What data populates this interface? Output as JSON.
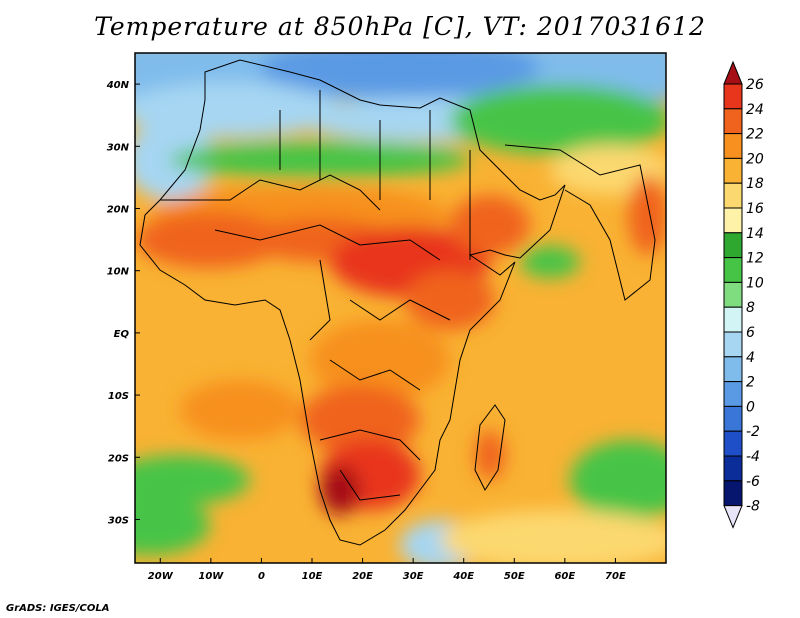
{
  "title": "Temperature at 850hPa [C], VT: 2017031612",
  "credit": "GrADS: IGES/COLA",
  "map": {
    "lon_range": [
      -25,
      80
    ],
    "lat_range": [
      -37,
      45
    ],
    "x_ticks": [
      {
        "lon": -20,
        "label": "20W"
      },
      {
        "lon": -10,
        "label": "10W"
      },
      {
        "lon": 0,
        "label": "0"
      },
      {
        "lon": 10,
        "label": "10E"
      },
      {
        "lon": 20,
        "label": "20E"
      },
      {
        "lon": 30,
        "label": "30E"
      },
      {
        "lon": 40,
        "label": "40E"
      },
      {
        "lon": 50,
        "label": "50E"
      },
      {
        "lon": 60,
        "label": "60E"
      },
      {
        "lon": 70,
        "label": "70E"
      }
    ],
    "y_ticks": [
      {
        "lat": 40,
        "label": "40N"
      },
      {
        "lat": 30,
        "label": "30N"
      },
      {
        "lat": 20,
        "label": "20N"
      },
      {
        "lat": 10,
        "label": "10N"
      },
      {
        "lat": 0,
        "label": "EQ"
      },
      {
        "lat": -10,
        "label": "10S"
      },
      {
        "lat": -20,
        "label": "20S"
      },
      {
        "lat": -30,
        "label": "30S"
      }
    ]
  },
  "colorbar": {
    "levels": [
      "26",
      "24",
      "22",
      "20",
      "18",
      "16",
      "14",
      "12",
      "10",
      "8",
      "6",
      "4",
      "2",
      "0",
      "-2",
      "-4",
      "-6",
      "-8"
    ],
    "colors": [
      "#a50f15",
      "#e8361c",
      "#f0631f",
      "#f7901e",
      "#f9b233",
      "#fcd870",
      "#fdf2a8",
      "#2ea82e",
      "#46c446",
      "#7fdc7f",
      "#d2f4f4",
      "#a6d6f2",
      "#7fbcec",
      "#5a9ae4",
      "#3a75d8",
      "#1f4fc8",
      "#0b2d9a",
      "#06156e",
      "#e8e4fa"
    ]
  }
}
